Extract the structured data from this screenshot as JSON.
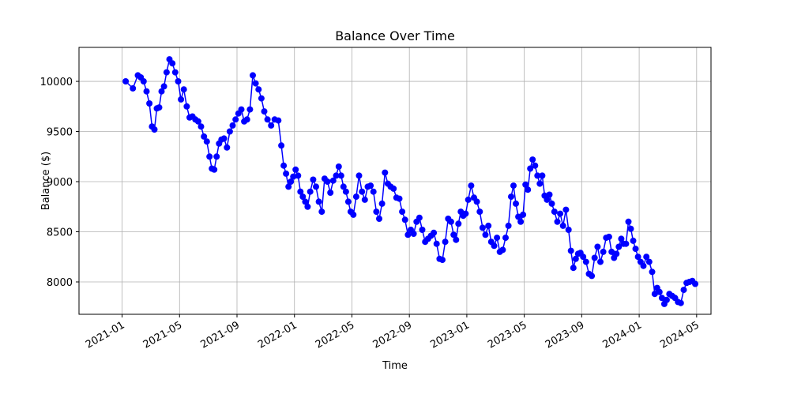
{
  "chart_data": {
    "type": "line",
    "title": "Balance Over Time",
    "x_label": "Time",
    "y_label": "Balance ($)",
    "x": [
      "2021-01",
      "2021-01",
      "2021-02",
      "2021-02",
      "2021-02",
      "2021-02",
      "2021-02",
      "2021-03",
      "2021-03",
      "2021-03",
      "2021-03",
      "2021-03",
      "2021-03",
      "2021-04",
      "2021-04",
      "2021-04",
      "2021-04",
      "2021-04",
      "2021-05",
      "2021-05",
      "2021-05",
      "2021-05",
      "2021-05",
      "2021-06",
      "2021-06",
      "2021-06",
      "2021-06",
      "2021-06",
      "2021-07",
      "2021-07",
      "2021-07",
      "2021-07",
      "2021-07",
      "2021-07",
      "2021-08",
      "2021-08",
      "2021-08",
      "2021-08",
      "2021-08",
      "2021-09",
      "2021-09",
      "2021-09",
      "2021-09",
      "2021-09",
      "2021-10",
      "2021-10",
      "2021-10",
      "2021-10",
      "2021-10",
      "2021-11",
      "2021-11",
      "2021-11",
      "2021-11",
      "2021-12",
      "2021-12",
      "2021-12",
      "2021-12",
      "2021-12",
      "2021-12",
      "2022-01",
      "2022-01",
      "2022-01",
      "2022-01",
      "2022-01",
      "2022-01",
      "2022-02",
      "2022-02",
      "2022-02",
      "2022-02",
      "2022-02",
      "2022-03",
      "2022-03",
      "2022-03",
      "2022-03",
      "2022-03",
      "2022-04",
      "2022-04",
      "2022-04",
      "2022-04",
      "2022-04",
      "2022-04",
      "2022-05",
      "2022-05",
      "2022-05",
      "2022-05",
      "2022-05",
      "2022-06",
      "2022-06",
      "2022-06",
      "2022-06",
      "2022-06",
      "2022-07",
      "2022-07",
      "2022-07",
      "2022-07",
      "2022-07",
      "2022-08",
      "2022-08",
      "2022-08",
      "2022-08",
      "2022-08",
      "2022-09",
      "2022-09",
      "2022-09",
      "2022-09",
      "2022-09",
      "2022-10",
      "2022-10",
      "2022-10",
      "2022-10",
      "2022-10",
      "2022-11",
      "2022-11",
      "2022-11",
      "2022-11",
      "2022-11",
      "2022-12",
      "2022-12",
      "2022-12",
      "2022-12",
      "2022-12",
      "2022-12",
      "2023-01",
      "2023-01",
      "2023-01",
      "2023-01",
      "2023-01",
      "2023-02",
      "2023-02",
      "2023-02",
      "2023-02",
      "2023-02",
      "2023-03",
      "2023-03",
      "2023-03",
      "2023-03",
      "2023-03",
      "2023-04",
      "2023-04",
      "2023-04",
      "2023-04",
      "2023-04",
      "2023-04",
      "2023-05",
      "2023-05",
      "2023-05",
      "2023-05",
      "2023-05",
      "2023-05",
      "2023-06",
      "2023-06",
      "2023-06",
      "2023-06",
      "2023-06",
      "2023-06",
      "2023-07",
      "2023-07",
      "2023-07",
      "2023-07",
      "2023-07",
      "2023-08",
      "2023-08",
      "2023-08",
      "2023-08",
      "2023-08",
      "2023-08",
      "2023-09",
      "2023-09",
      "2023-09",
      "2023-09",
      "2023-09",
      "2023-10",
      "2023-10",
      "2023-10",
      "2023-10",
      "2023-10",
      "2023-11",
      "2023-11",
      "2023-11",
      "2023-11",
      "2023-11",
      "2023-11",
      "2023-12",
      "2023-12",
      "2023-12",
      "2023-12",
      "2023-12",
      "2023-12",
      "2024-01",
      "2024-01",
      "2024-01",
      "2024-01",
      "2024-01",
      "2024-02",
      "2024-02",
      "2024-02",
      "2024-02",
      "2024-02",
      "2024-02",
      "2024-03",
      "2024-03",
      "2024-03",
      "2024-03",
      "2024-03",
      "2024-04",
      "2024-04",
      "2024-04",
      "2024-04",
      "2024-04"
    ],
    "values": [
      10000,
      9930,
      10060,
      10040,
      10000,
      9900,
      9780,
      9550,
      9520,
      9730,
      9740,
      9900,
      9950,
      10090,
      10220,
      10180,
      10090,
      10000,
      9820,
      9920,
      9750,
      9640,
      9650,
      9620,
      9600,
      9550,
      9450,
      9400,
      9250,
      9130,
      9120,
      9250,
      9380,
      9420,
      9430,
      9340,
      9500,
      9560,
      9620,
      9680,
      9720,
      9600,
      9620,
      9720,
      10060,
      9980,
      9920,
      9830,
      9700,
      9620,
      9560,
      9620,
      9610,
      9360,
      9160,
      9080,
      8950,
      9000,
      9050,
      9120,
      9060,
      8900,
      8850,
      8800,
      8750,
      8900,
      9020,
      8950,
      8800,
      8700,
      9030,
      9000,
      8890,
      9010,
      9060,
      9150,
      9060,
      8950,
      8900,
      8800,
      8700,
      8670,
      8850,
      9060,
      8900,
      8820,
      8950,
      8960,
      8900,
      8700,
      8630,
      8780,
      9090,
      8980,
      8950,
      8930,
      8840,
      8830,
      8700,
      8620,
      8470,
      8520,
      8480,
      8600,
      8640,
      8520,
      8400,
      8430,
      8460,
      8490,
      8380,
      8230,
      8220,
      8400,
      8630,
      8600,
      8470,
      8420,
      8580,
      8700,
      8660,
      8680,
      8820,
      8960,
      8840,
      8800,
      8700,
      8540,
      8470,
      8560,
      8400,
      8360,
      8440,
      8300,
      8320,
      8440,
      8560,
      8850,
      8960,
      8780,
      8650,
      8600,
      8670,
      8970,
      8920,
      9130,
      9220,
      9160,
      9060,
      8980,
      9060,
      8860,
      8820,
      8870,
      8780,
      8700,
      8600,
      8680,
      8560,
      8720,
      8520,
      8310,
      8140,
      8230,
      8280,
      8290,
      8250,
      8200,
      8080,
      8060,
      8240,
      8350,
      8200,
      8300,
      8440,
      8450,
      8300,
      8240,
      8280,
      8350,
      8430,
      8380,
      8380,
      8600,
      8530,
      8410,
      8330,
      8250,
      8200,
      8160,
      8250,
      8200,
      8100,
      7880,
      7940,
      7900,
      7840,
      7780,
      7820,
      7880,
      7860,
      7840,
      7800,
      7790,
      7920,
      7990,
      8000,
      8010,
      7980
    ],
    "color": "#0000ff",
    "xlim": [
      "2020-10",
      "2024-06"
    ],
    "xticks": [
      "2021-01",
      "2021-05",
      "2021-09",
      "2022-01",
      "2022-05",
      "2022-09",
      "2023-01",
      "2023-05",
      "2023-09",
      "2024-01",
      "2024-05"
    ],
    "ylim": [
      7677,
      10339
    ],
    "yticks": [
      8000,
      8500,
      9000,
      9500,
      10000
    ],
    "grid": true
  }
}
